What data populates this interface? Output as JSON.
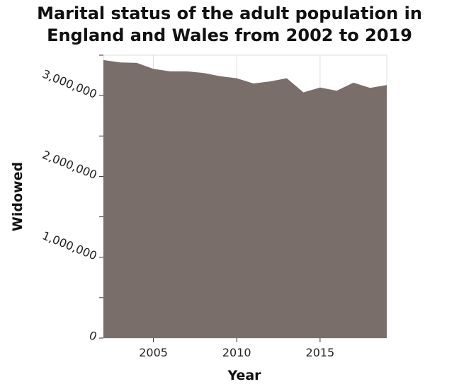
{
  "chart_data": {
    "type": "area",
    "title_lines": [
      "Marital status of the adult population in",
      "England and Wales from 2002 to 2019"
    ],
    "xlabel": "Year",
    "ylabel": "Widowed",
    "x": [
      2002,
      2003,
      2004,
      2005,
      2006,
      2007,
      2008,
      2009,
      2010,
      2011,
      2012,
      2013,
      2014,
      2015,
      2016,
      2017,
      2018,
      2019
    ],
    "series": [
      {
        "values": [
          3440000,
          3410000,
          3405000,
          3330000,
          3300000,
          3300000,
          3280000,
          3240000,
          3215000,
          3150000,
          3175000,
          3215000,
          3040000,
          3100000,
          3060000,
          3160000,
          3095000,
          3130000
        ]
      }
    ],
    "xlim": [
      2002,
      2019
    ],
    "ylim": [
      0,
      3500000
    ],
    "x_ticks": [
      2005,
      2010,
      2015
    ],
    "x_tick_labels": [
      "2005",
      "2010",
      "2015"
    ],
    "y_ticks": [
      0,
      500000,
      1000000,
      1500000,
      2000000,
      2500000,
      3000000,
      3500000
    ],
    "y_tick_labels": [
      "0",
      "",
      "1,000,000",
      "",
      "2,000,000",
      "",
      "3,000,000",
      ""
    ],
    "fill_color": "#7a6e6a",
    "grid": true,
    "grid_color": "#dddddd"
  }
}
